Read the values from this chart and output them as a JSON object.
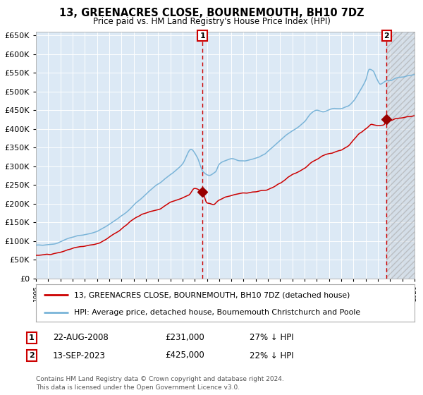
{
  "title": "13, GREENACRES CLOSE, BOURNEMOUTH, BH10 7DZ",
  "subtitle": "Price paid vs. HM Land Registry's House Price Index (HPI)",
  "bg_color": "#dce9f5",
  "grid_color": "#c8d8e8",
  "hatch_color": "#b8c8d8",
  "legend_line1": "13, GREENACRES CLOSE, BOURNEMOUTH, BH10 7DZ (detached house)",
  "legend_line2": "HPI: Average price, detached house, Bournemouth Christchurch and Poole",
  "annotation1_label": "1",
  "annotation1_date": "22-AUG-2008",
  "annotation1_price": "£231,000",
  "annotation1_hpi": "27% ↓ HPI",
  "annotation2_label": "2",
  "annotation2_date": "13-SEP-2023",
  "annotation2_price": "£425,000",
  "annotation2_hpi": "22% ↓ HPI",
  "footer": "Contains HM Land Registry data © Crown copyright and database right 2024.\nThis data is licensed under the Open Government Licence v3.0.",
  "hpi_color": "#7ab4d8",
  "price_color": "#cc0000",
  "marker_color": "#990000",
  "vline_color": "#cc0000",
  "ylim": [
    0,
    660000
  ],
  "ytick_step": 50000,
  "sale1_x": 2008.63,
  "sale1_y": 231000,
  "sale2_x": 2023.7,
  "sale2_y": 425000,
  "xmin": 1995,
  "xmax": 2026
}
